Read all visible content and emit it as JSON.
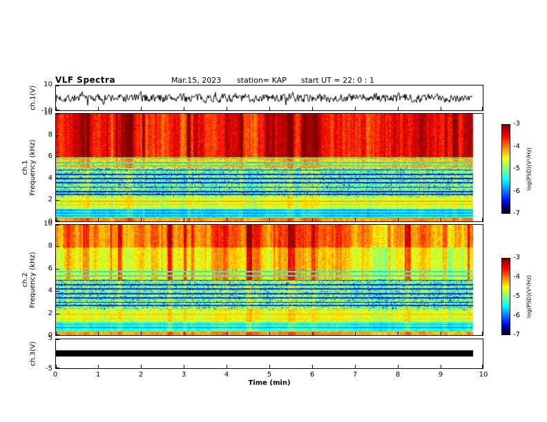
{
  "header": {
    "title": "VLF Spectra",
    "date": "Mar.15, 2023",
    "station": "station= KAP",
    "start_ut": "start UT =  22: 0 : 1"
  },
  "xaxis": {
    "label": "Time (min)",
    "lim": [
      0,
      10
    ],
    "ticks": [
      0,
      1,
      2,
      3,
      4,
      5,
      6,
      7,
      8,
      9,
      10
    ],
    "data_end_min": 9.8
  },
  "chart_data": [
    {
      "type": "line",
      "name": "ch1-voltage-waveform",
      "ylabel": "ch.1(V)",
      "ylim": [
        -10,
        10
      ],
      "yticks": [
        10,
        -10
      ],
      "description": "Dense black broadband noise waveform, amplitude mostly within ±5 V across 0–9.8 min"
    },
    {
      "type": "heatmap",
      "name": "ch1-spectrogram",
      "ylabel_lines": [
        "ch.1",
        "Frequency (kHz)"
      ],
      "ylim": [
        0,
        10
      ],
      "yticks": [
        0,
        2,
        4,
        6,
        8,
        10
      ],
      "colorbar": {
        "label": "log(PSD)(V²/Hz)",
        "ticks": [
          -3,
          -4,
          -5,
          -6,
          -7
        ],
        "lim": [
          -3,
          -7
        ]
      },
      "features": {
        "streaks_above": 6,
        "streak_strength": 0.55,
        "bands": [
          {
            "f": [
              6,
              10
            ],
            "psd": -3.5
          },
          {
            "f": [
              5,
              6
            ],
            "psd": -4.3
          },
          {
            "f": [
              2.4,
              5
            ],
            "psd": -5.0
          },
          {
            "f": [
              1.2,
              2.4
            ],
            "psd": -4.7
          },
          {
            "f": [
              0.35,
              1.2
            ],
            "psd": -5.4
          },
          {
            "f": [
              0,
              0.35
            ],
            "psd": -4.1
          }
        ],
        "dark_lines": [
          {
            "f": 5.9,
            "psd": -5.6
          },
          {
            "f": 5.5,
            "psd": -5.6
          },
          {
            "f": 5.2,
            "psd": -5.7
          },
          {
            "f": 4.8,
            "psd": -6.3
          },
          {
            "f": 4.4,
            "psd": -6.3
          },
          {
            "f": 4.0,
            "psd": -6.4
          },
          {
            "f": 3.6,
            "psd": -6.3
          },
          {
            "f": 3.2,
            "psd": -6.3
          },
          {
            "f": 2.8,
            "psd": -6.4
          },
          {
            "f": 2.55,
            "psd": -6.2
          },
          {
            "f": 1.05,
            "psd": -5.9
          },
          {
            "f": 0.8,
            "psd": -5.9
          },
          {
            "f": 0.55,
            "psd": -5.8
          }
        ],
        "bright_lines": [
          {
            "f": 1.9,
            "psd": -4.2
          },
          {
            "f": 1.6,
            "psd": -4.25
          }
        ]
      }
    },
    {
      "type": "heatmap",
      "name": "ch2-spectrogram",
      "ylabel_lines": [
        "ch.2",
        "Frequency (kHz)"
      ],
      "ylim": [
        0,
        10
      ],
      "yticks": [
        0,
        2,
        4,
        6,
        8,
        10
      ],
      "colorbar": {
        "label": "log(PSD)(V²/Hz)",
        "ticks": [
          -3,
          -4,
          -5,
          -6,
          -7
        ],
        "lim": [
          -3,
          -7
        ]
      },
      "features": {
        "streaks_above": 5,
        "streak_strength": 0.5,
        "bands": [
          {
            "f": [
              8,
              10
            ],
            "psd": -3.9
          },
          {
            "f": [
              5,
              8
            ],
            "psd": -4.35
          },
          {
            "f": [
              2.4,
              5
            ],
            "psd": -4.95
          },
          {
            "f": [
              1.2,
              2.4
            ],
            "psd": -4.6
          },
          {
            "f": [
              0.35,
              1.2
            ],
            "psd": -5.3
          },
          {
            "f": [
              0,
              0.35
            ],
            "psd": -4.1
          }
        ],
        "dark_lines": [
          {
            "f": 5.8,
            "psd": -5.5
          },
          {
            "f": 5.4,
            "psd": -5.5
          },
          {
            "f": 5.0,
            "psd": -6.2
          },
          {
            "f": 4.6,
            "psd": -6.3
          },
          {
            "f": 4.2,
            "psd": -6.3
          },
          {
            "f": 3.8,
            "psd": -6.3
          },
          {
            "f": 3.4,
            "psd": -6.3
          },
          {
            "f": 3.0,
            "psd": -6.4
          },
          {
            "f": 2.7,
            "psd": -6.2
          },
          {
            "f": 1.0,
            "psd": -5.8
          },
          {
            "f": 0.7,
            "psd": -5.8
          }
        ],
        "bright_lines": [
          {
            "f": 1.9,
            "psd": -4.3
          },
          {
            "f": 1.5,
            "psd": -4.3
          }
        ]
      }
    },
    {
      "type": "line",
      "name": "ch3-voltage-waveform",
      "ylabel": "ch.3(V)",
      "ylim": [
        -5,
        5
      ],
      "yticks": [
        5,
        -5
      ],
      "description": "Saturated solid black band centred on 0 V spanning the full 0–9.8 min record"
    }
  ]
}
